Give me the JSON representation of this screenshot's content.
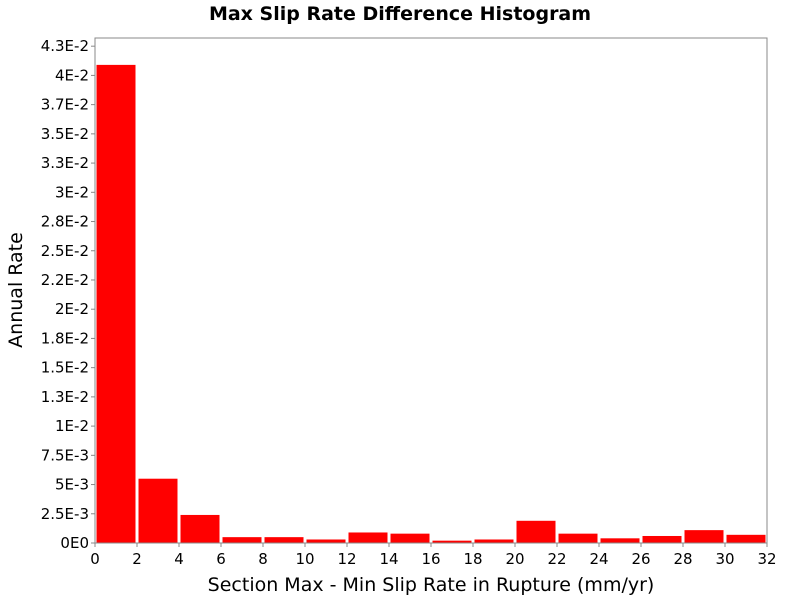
{
  "chart_data": {
    "type": "bar",
    "title": "Max Slip Rate Difference Histogram",
    "xlabel": "Section Max - Min Slip Rate in Rupture (mm/yr)",
    "ylabel": "Annual Rate",
    "xlim": [
      0,
      32
    ],
    "ylim": [
      0,
      0.0432
    ],
    "grid": true,
    "bar_color": "#ff0000",
    "bin_width": 2,
    "bins": [
      {
        "x0": 0,
        "x1": 2,
        "value": 0.0409
      },
      {
        "x0": 2,
        "x1": 4,
        "value": 0.0055
      },
      {
        "x0": 4,
        "x1": 6,
        "value": 0.0024
      },
      {
        "x0": 6,
        "x1": 8,
        "value": 0.0005
      },
      {
        "x0": 8,
        "x1": 10,
        "value": 0.0005
      },
      {
        "x0": 10,
        "x1": 12,
        "value": 0.0003
      },
      {
        "x0": 12,
        "x1": 14,
        "value": 0.0009
      },
      {
        "x0": 14,
        "x1": 16,
        "value": 0.0008
      },
      {
        "x0": 16,
        "x1": 18,
        "value": 0.0002
      },
      {
        "x0": 18,
        "x1": 20,
        "value": 0.0003
      },
      {
        "x0": 20,
        "x1": 22,
        "value": 0.0019
      },
      {
        "x0": 22,
        "x1": 24,
        "value": 0.0008
      },
      {
        "x0": 24,
        "x1": 26,
        "value": 0.0004
      },
      {
        "x0": 26,
        "x1": 28,
        "value": 0.0006
      },
      {
        "x0": 28,
        "x1": 30,
        "value": 0.0011
      },
      {
        "x0": 30,
        "x1": 32,
        "value": 0.0007
      }
    ],
    "y_ticks": [
      {
        "value": 0,
        "label": "0E0"
      },
      {
        "value": 0.0025,
        "label": "2.5E-3"
      },
      {
        "value": 0.005,
        "label": "5E-3"
      },
      {
        "value": 0.0075,
        "label": "7.5E-3"
      },
      {
        "value": 0.01,
        "label": "1E-2"
      },
      {
        "value": 0.0125,
        "label": "1.3E-2"
      },
      {
        "value": 0.015,
        "label": "1.5E-2"
      },
      {
        "value": 0.0175,
        "label": "1.8E-2"
      },
      {
        "value": 0.02,
        "label": "2E-2"
      },
      {
        "value": 0.0225,
        "label": "2.2E-2"
      },
      {
        "value": 0.025,
        "label": "2.5E-2"
      },
      {
        "value": 0.0275,
        "label": "2.8E-2"
      },
      {
        "value": 0.03,
        "label": "3E-2"
      },
      {
        "value": 0.0325,
        "label": "3.3E-2"
      },
      {
        "value": 0.035,
        "label": "3.5E-2"
      },
      {
        "value": 0.0375,
        "label": "3.7E-2"
      },
      {
        "value": 0.04,
        "label": "4E-2"
      },
      {
        "value": 0.0425,
        "label": "4.3E-2"
      }
    ],
    "x_ticks": [
      {
        "value": 0,
        "label": "0"
      },
      {
        "value": 2,
        "label": "2"
      },
      {
        "value": 4,
        "label": "4"
      },
      {
        "value": 6,
        "label": "6"
      },
      {
        "value": 8,
        "label": "8"
      },
      {
        "value": 10,
        "label": "10"
      },
      {
        "value": 12,
        "label": "12"
      },
      {
        "value": 14,
        "label": "14"
      },
      {
        "value": 16,
        "label": "16"
      },
      {
        "value": 18,
        "label": "18"
      },
      {
        "value": 20,
        "label": "20"
      },
      {
        "value": 22,
        "label": "22"
      },
      {
        "value": 24,
        "label": "24"
      },
      {
        "value": 26,
        "label": "26"
      },
      {
        "value": 28,
        "label": "28"
      },
      {
        "value": 30,
        "label": "30"
      },
      {
        "value": 32,
        "label": "32"
      }
    ]
  }
}
